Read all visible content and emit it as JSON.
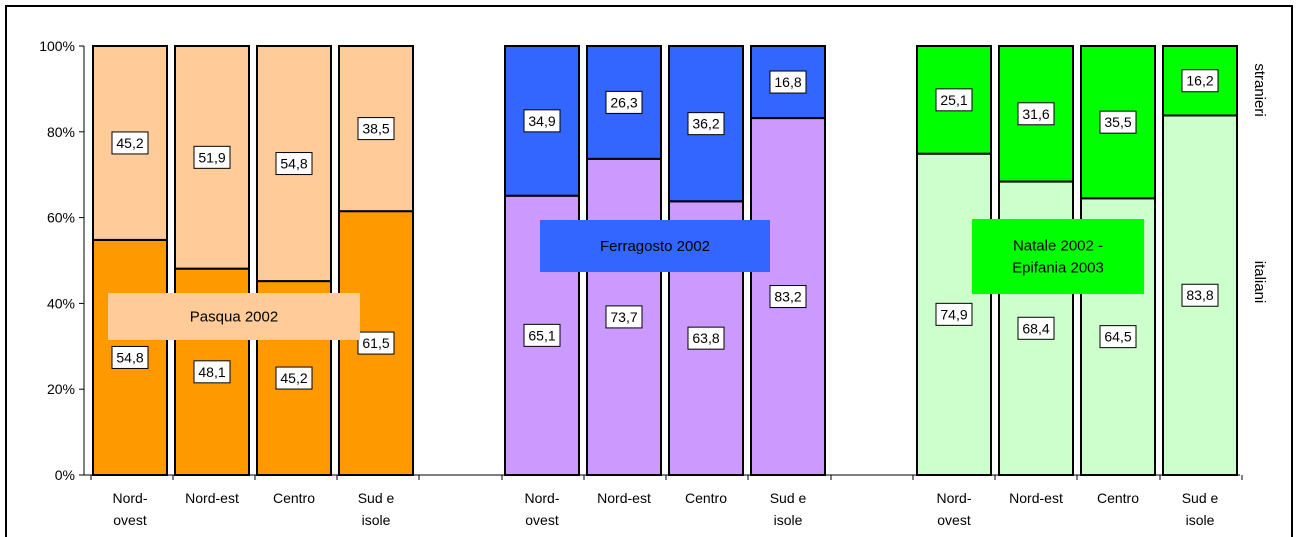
{
  "chart_data": {
    "type": "bar",
    "stacked": "percent",
    "ylim": [
      0,
      100
    ],
    "y_ticks": [
      "0%",
      "20%",
      "40%",
      "60%",
      "80%",
      "100%"
    ],
    "groups": [
      {
        "label": "Pasqua 2002",
        "categories": [
          "Nord-\novest",
          "Nord-est",
          "Centro",
          "Sud e\nisole"
        ],
        "italiani": [
          54.8,
          48.1,
          45.2,
          61.5
        ],
        "stranieri": [
          45.2,
          51.9,
          54.8,
          38.5
        ],
        "italiani_labels": [
          "54,8",
          "48,1",
          "45,2",
          "61,5"
        ],
        "stranieri_labels": [
          "45,2",
          "51,9",
          "54,8",
          "38,5"
        ],
        "colors": {
          "italiani": "#ff9900",
          "stranieri": "#ffcc99",
          "label_box": "#ffcc99"
        }
      },
      {
        "label": "Ferragosto 2002",
        "categories": [
          "Nord-\novest",
          "Nord-est",
          "Centro",
          "Sud e\nisole"
        ],
        "italiani": [
          65.1,
          73.7,
          63.8,
          83.2
        ],
        "stranieri": [
          34.9,
          26.3,
          36.2,
          16.8
        ],
        "italiani_labels": [
          "65,1",
          "73,7",
          "63,8",
          "83,2"
        ],
        "stranieri_labels": [
          "34,9",
          "26,3",
          "36,2",
          "16,8"
        ],
        "colors": {
          "italiani": "#cc99ff",
          "stranieri": "#3366ff",
          "label_box": "#3366ff"
        }
      },
      {
        "label": "Natale 2002 -\nEpifania 2003",
        "categories": [
          "Nord-\novest",
          "Nord-est",
          "Centro",
          "Sud e\nisole"
        ],
        "italiani": [
          74.9,
          68.4,
          64.5,
          83.8
        ],
        "stranieri": [
          25.1,
          31.6,
          35.5,
          16.2
        ],
        "italiani_labels": [
          "74,9",
          "68,4",
          "64,5",
          "83,8"
        ],
        "stranieri_labels": [
          "25,1",
          "31,6",
          "35,5",
          "16,2"
        ],
        "colors": {
          "italiani": "#ccffcc",
          "stranieri": "#00ff00",
          "label_box": "#00ff00"
        }
      }
    ],
    "side_labels": {
      "top": "stranieri",
      "bottom": "italiani"
    }
  }
}
